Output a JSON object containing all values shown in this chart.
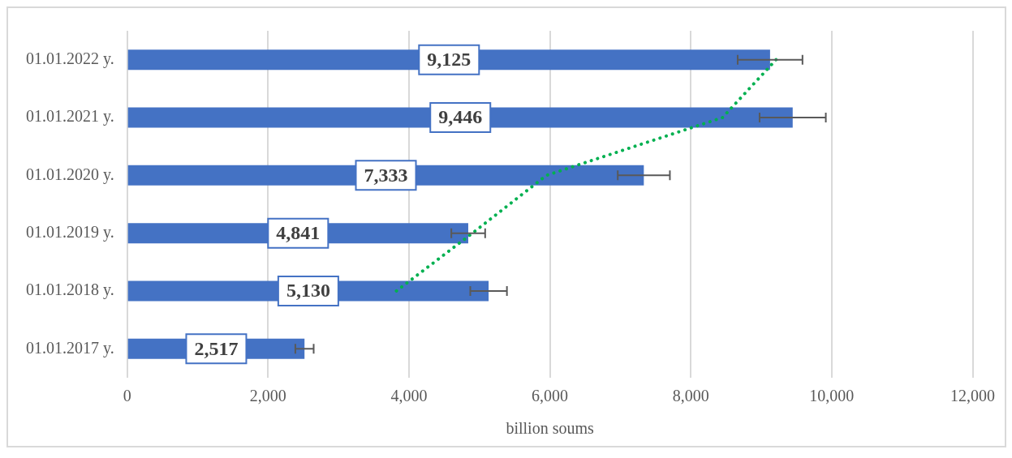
{
  "chart_data": {
    "type": "bar",
    "orientation": "horizontal",
    "xlabel": "billion soums",
    "categories": [
      "01.01.2022 y.",
      "01.01.2021 y.",
      "01.01.2020 y.",
      "01.01.2019 y.",
      "01.01.2018 y.",
      "01.01.2017 y."
    ],
    "series": [
      {
        "color": "#4472c4",
        "values": [
          9125,
          9446,
          7333,
          4841,
          5130,
          2517
        ],
        "value_labels": [
          "9,125",
          "9,446",
          "7,333",
          "4,841",
          "5,130",
          "2,517"
        ],
        "errors": [
          460,
          470,
          370,
          240,
          260,
          130
        ]
      },
      {
        "type": "line",
        "color": "#00b050",
        "line_style": "dotted",
        "marker": "none",
        "values": [
          9210,
          8450,
          5950,
          4900,
          3820,
          null
        ]
      }
    ],
    "xlim": [
      0,
      12000
    ],
    "xticks": [
      {
        "value": 0,
        "label": "0"
      },
      {
        "value": 2000,
        "label": "2,000"
      },
      {
        "value": 4000,
        "label": "4,000"
      },
      {
        "value": 6000,
        "label": "6,000"
      },
      {
        "value": 8000,
        "label": "8,000"
      },
      {
        "value": 10000,
        "label": "10,000"
      },
      {
        "value": 12000,
        "label": "12,000"
      }
    ],
    "grid": "x",
    "legend": false
  }
}
